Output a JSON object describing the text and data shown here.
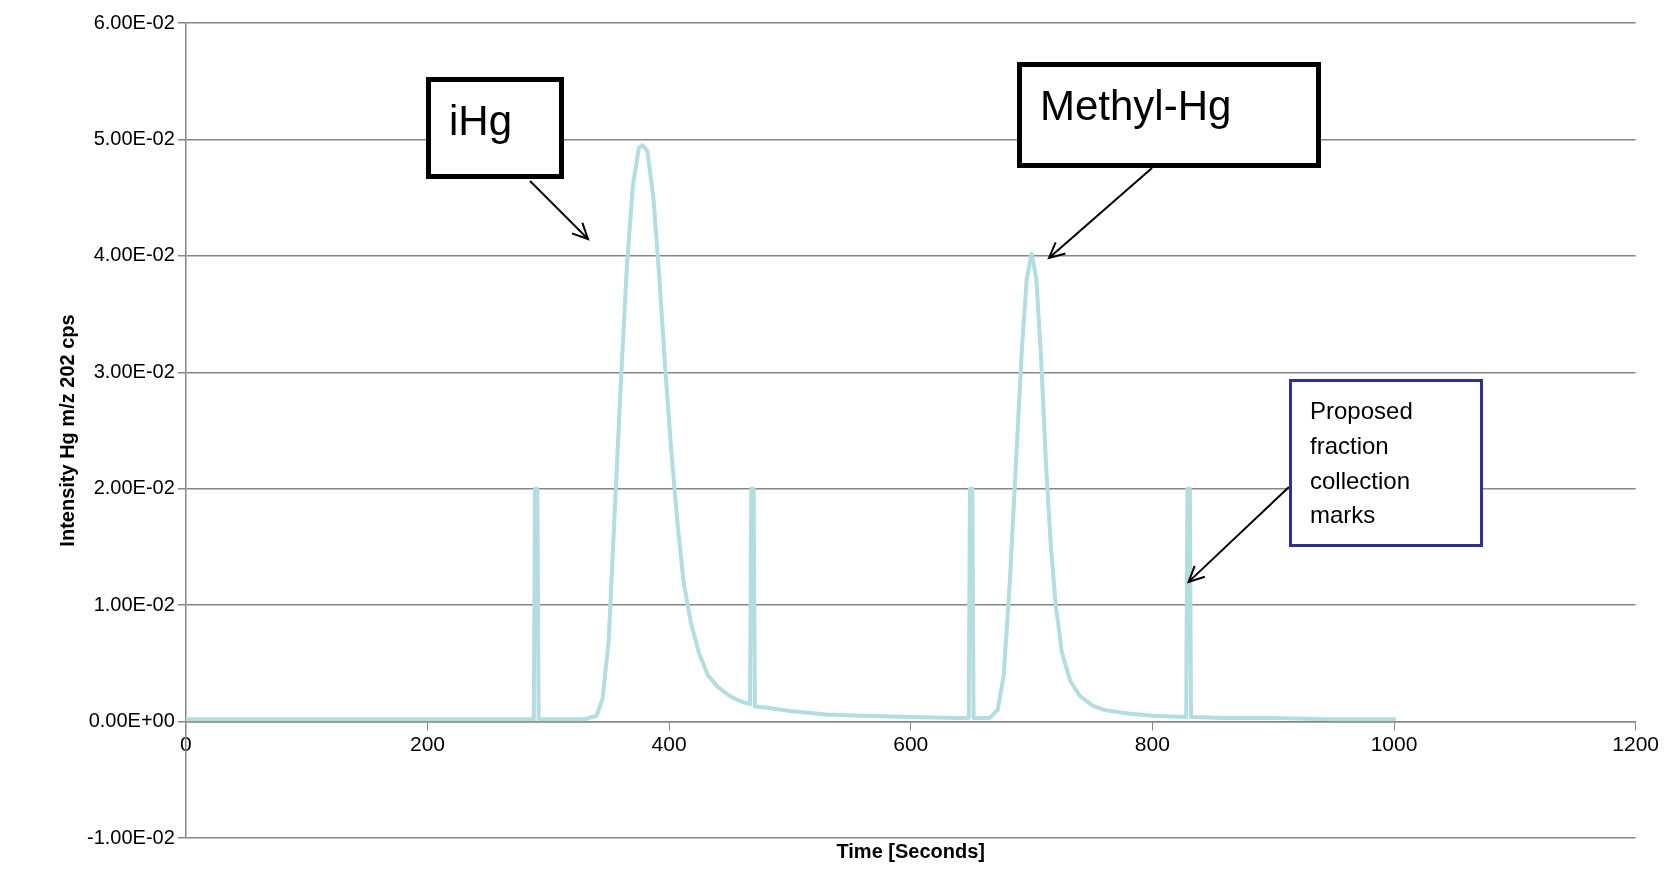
{
  "chart_data": {
    "type": "line",
    "xlabel": "Time [Seconds]",
    "ylabel": "Intensity Hg m/z 202 cps",
    "x": [
      0,
      100,
      200,
      288,
      289,
      291,
      292,
      330,
      340,
      345,
      350,
      355,
      360,
      365,
      370,
      375,
      378,
      382,
      387,
      392,
      397,
      402,
      407,
      412,
      418,
      425,
      432,
      440,
      450,
      460,
      467,
      468,
      470,
      471,
      480,
      500,
      530,
      560,
      600,
      640,
      648,
      649,
      651,
      652,
      665,
      672,
      677,
      682,
      687,
      692,
      696,
      700,
      704,
      708,
      712,
      716,
      720,
      725,
      732,
      740,
      750,
      760,
      780,
      800,
      828,
      829,
      831,
      832,
      860,
      900,
      950,
      1000
    ],
    "series": [
      {
        "color": "#b4dde0",
        "values": [
          0.0002,
          0.0002,
          0.0002,
          0.0002,
          0.02,
          0.02,
          0.0002,
          0.0002,
          0.0005,
          0.002,
          0.007,
          0.018,
          0.029,
          0.039,
          0.046,
          0.0493,
          0.0495,
          0.049,
          0.045,
          0.038,
          0.03,
          0.023,
          0.017,
          0.012,
          0.0085,
          0.0058,
          0.004,
          0.003,
          0.0022,
          0.0017,
          0.0015,
          0.02,
          0.02,
          0.0013,
          0.0012,
          0.0009,
          0.0006,
          0.0005,
          0.0004,
          0.0003,
          0.0003,
          0.02,
          0.02,
          0.0003,
          0.0003,
          0.001,
          0.004,
          0.012,
          0.022,
          0.032,
          0.038,
          0.0402,
          0.038,
          0.031,
          0.022,
          0.015,
          0.01,
          0.006,
          0.0035,
          0.0022,
          0.0014,
          0.001,
          0.0007,
          0.0005,
          0.0004,
          0.02,
          0.02,
          0.0004,
          0.0003,
          0.0003,
          0.0002,
          0.0002
        ]
      }
    ],
    "xlim": [
      0,
      1200
    ],
    "xticks": [
      0,
      200,
      400,
      600,
      800,
      1000,
      1200
    ],
    "ylim": [
      -0.01,
      0.06
    ],
    "yticks": [
      {
        "value": -0.01,
        "label": "-1.00E-02"
      },
      {
        "value": 0,
        "label": "0.00E+00"
      },
      {
        "value": 0.01,
        "label": "1.00E-02"
      },
      {
        "value": 0.02,
        "label": "2.00E-02"
      },
      {
        "value": 0.03,
        "label": "3.00E-02"
      },
      {
        "value": 0.04,
        "label": "4.00E-02"
      },
      {
        "value": 0.05,
        "label": "5.00E-02"
      },
      {
        "value": 0.06,
        "label": "6.00E-02"
      }
    ],
    "grid": "y",
    "legend": false,
    "marker": "none",
    "line_style": "solid",
    "annotations": [
      "iHg",
      "Methyl-Hg",
      {
        "text": "Proposed fraction collection marks",
        "x": 830,
        "y": 0.012
      }
    ]
  }
}
